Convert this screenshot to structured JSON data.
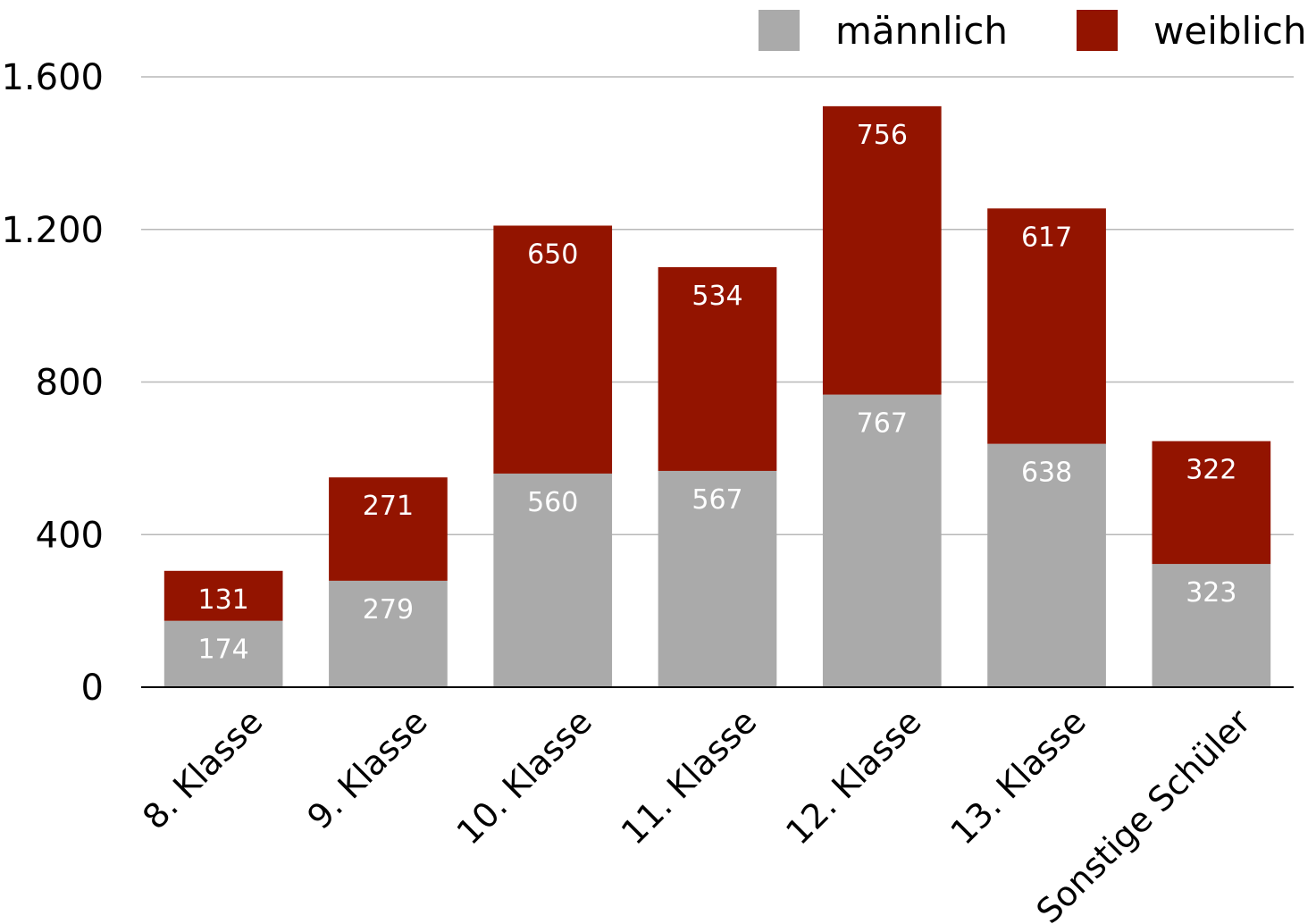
{
  "chart_data": {
    "type": "bar",
    "stacked": true,
    "categories": [
      "8. Klasse",
      "9. Klasse",
      "10. Klasse",
      "11. Klasse",
      "12. Klasse",
      "13. Klasse",
      "Sonstige Schüler"
    ],
    "series": [
      {
        "name": "männlich",
        "color": "#aaaaaa",
        "values": [
          174,
          279,
          560,
          567,
          767,
          638,
          323
        ]
      },
      {
        "name": "weiblich",
        "color": "#931400",
        "values": [
          131,
          271,
          650,
          534,
          756,
          617,
          322
        ]
      }
    ],
    "ylim": [
      0,
      1600
    ],
    "yticks": [
      0,
      400,
      800,
      1200,
      1600
    ],
    "ytick_labels": [
      "0",
      "400",
      "800",
      "1.200",
      "1.600"
    ],
    "grid": true,
    "legend_position": "top-right",
    "title": "",
    "xlabel": "",
    "ylabel": ""
  }
}
